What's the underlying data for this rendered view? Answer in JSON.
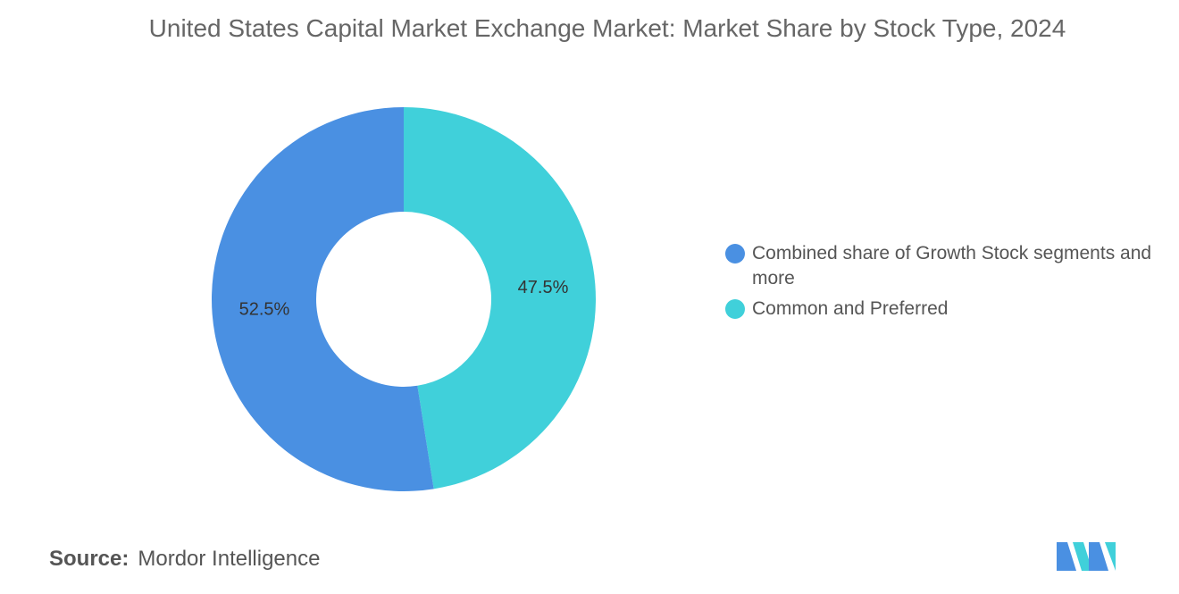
{
  "chart_data": {
    "type": "donut",
    "title": "United States Capital Market Exchange Market: Market Share by Stock Type, 2024",
    "series": [
      {
        "name": "Combined share of Growth Stock segments and more",
        "color": "#4a90e2",
        "values": [
          52.5
        ],
        "value_labels": [
          "52.5%"
        ]
      },
      {
        "name": "Common and Preferred",
        "color": "#40d0da",
        "values": [
          47.5
        ],
        "value_labels": [
          "47.5%"
        ]
      }
    ],
    "source_label": "Source:",
    "source": "Mordor Intelligence"
  }
}
